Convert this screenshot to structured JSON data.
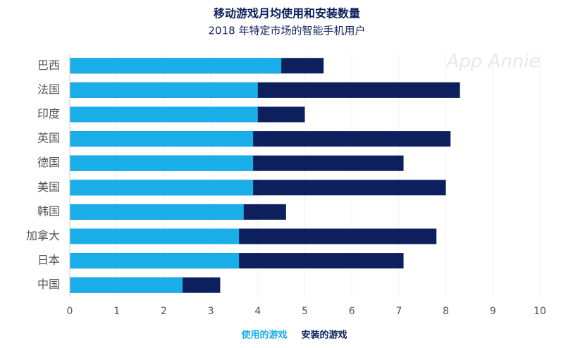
{
  "chart_data": {
    "type": "bar",
    "title": "移动游戏月均使用和安装数量",
    "subtitle": "2018 年特定市场的智能手机用户",
    "watermark": "App Annie",
    "categories": [
      "巴西",
      "法国",
      "印度",
      "英国",
      "德国",
      "美国",
      "韩国",
      "加拿大",
      "日本",
      "中国"
    ],
    "series": [
      {
        "name": "使用的游戏",
        "color": "#1aaee8",
        "values": [
          4.5,
          4.0,
          4.0,
          3.9,
          3.9,
          3.9,
          3.7,
          3.6,
          3.6,
          2.4
        ]
      },
      {
        "name": "安装的游戏",
        "color": "#0d1f5c",
        "values": [
          5.4,
          8.3,
          5.0,
          8.1,
          7.1,
          8.0,
          4.6,
          7.8,
          7.1,
          3.2
        ]
      }
    ],
    "xlim": [
      0,
      10
    ],
    "xticks": [
      0,
      1,
      2,
      3,
      4,
      5,
      6,
      7,
      8,
      9,
      10
    ],
    "grid": true,
    "legend": "bottom"
  }
}
